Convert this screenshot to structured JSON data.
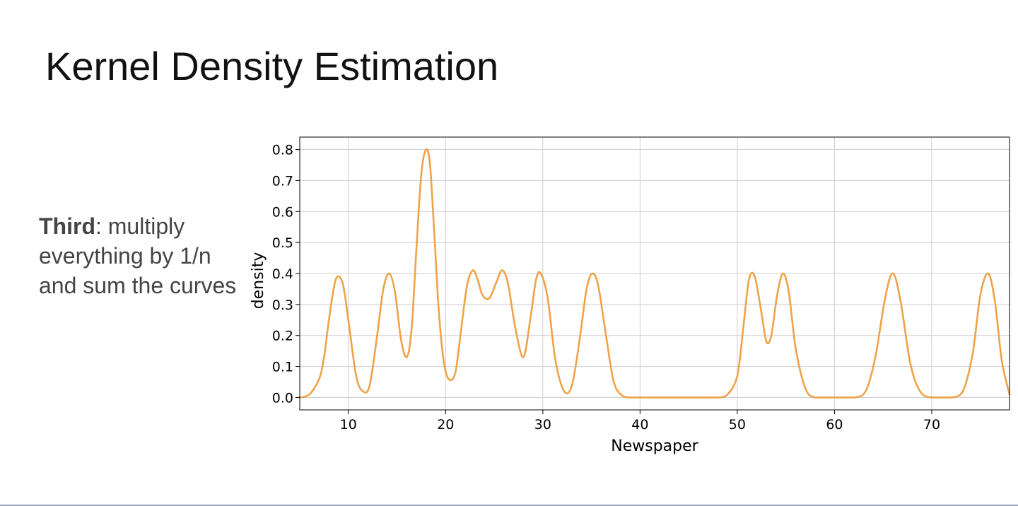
{
  "slide": {
    "title": "Kernel Density Estimation",
    "caption_bold": "Third",
    "caption_rest": ": multiply everything by 1/n and sum the curves"
  },
  "colors": {
    "curve": "#F0A24A",
    "grid": "#CFCFCF",
    "axis": "#000000",
    "title_text": "#111111",
    "body_text": "#444444"
  },
  "chart_data": {
    "type": "line",
    "xlabel": "Newspaper",
    "ylabel": "density",
    "xlim": [
      5,
      78
    ],
    "ylim": [
      -0.04,
      0.84
    ],
    "xticks": [
      10,
      20,
      30,
      40,
      50,
      60,
      70
    ],
    "xtick_labels": [
      "10",
      "20",
      "30",
      "40",
      "50",
      "60",
      "70"
    ],
    "yticks": [
      0.0,
      0.1,
      0.2,
      0.3,
      0.4,
      0.5,
      0.6,
      0.7,
      0.8
    ],
    "ytick_labels": [
      "0.0",
      "0.1",
      "0.2",
      "0.3",
      "0.4",
      "0.5",
      "0.6",
      "0.7",
      "0.8"
    ],
    "grid": true,
    "legend": "none",
    "series": [
      {
        "x": [
          5,
          6,
          7,
          7.5,
          8,
          8.7,
          9.4,
          10,
          10.8,
          11.5,
          12.2,
          13,
          13.6,
          14.2,
          14.8,
          15.4,
          16,
          16.5,
          17,
          17.5,
          18,
          18.4,
          18.8,
          19.3,
          19.8,
          20.3,
          21,
          21.6,
          22.2,
          22.8,
          23.3,
          23.8,
          24.5,
          25.2,
          25.8,
          26.4,
          27.2,
          28,
          28.7,
          29.3,
          29.8,
          30.5,
          31.3,
          32.2,
          33,
          33.8,
          34.5,
          35.1,
          35.7,
          36.5,
          37.3,
          38.2,
          39,
          40,
          45,
          48,
          49,
          50,
          50.6,
          51.2,
          51.8,
          52.5,
          53,
          53.5,
          54.1,
          54.7,
          55.3,
          56,
          57,
          58,
          60,
          62,
          63.2,
          64.2,
          65.2,
          66,
          66.8,
          67.8,
          68.8,
          70,
          72,
          73.2,
          74.2,
          75,
          75.8,
          76.5,
          77.2,
          78
        ],
        "values": [
          0.0,
          0.01,
          0.06,
          0.13,
          0.25,
          0.38,
          0.37,
          0.25,
          0.07,
          0.02,
          0.04,
          0.21,
          0.35,
          0.4,
          0.34,
          0.19,
          0.13,
          0.22,
          0.48,
          0.72,
          0.8,
          0.75,
          0.55,
          0.28,
          0.12,
          0.06,
          0.08,
          0.22,
          0.36,
          0.41,
          0.38,
          0.33,
          0.32,
          0.37,
          0.41,
          0.37,
          0.22,
          0.13,
          0.25,
          0.38,
          0.4,
          0.32,
          0.12,
          0.02,
          0.04,
          0.19,
          0.35,
          0.4,
          0.36,
          0.2,
          0.05,
          0.005,
          0.0,
          0.0,
          0.0,
          0.0,
          0.01,
          0.07,
          0.22,
          0.38,
          0.39,
          0.27,
          0.18,
          0.2,
          0.33,
          0.4,
          0.34,
          0.16,
          0.03,
          0.0,
          0.0,
          0.0,
          0.02,
          0.13,
          0.32,
          0.4,
          0.31,
          0.11,
          0.02,
          0.0,
          0.0,
          0.02,
          0.14,
          0.33,
          0.4,
          0.31,
          0.12,
          0.01
        ]
      }
    ]
  }
}
